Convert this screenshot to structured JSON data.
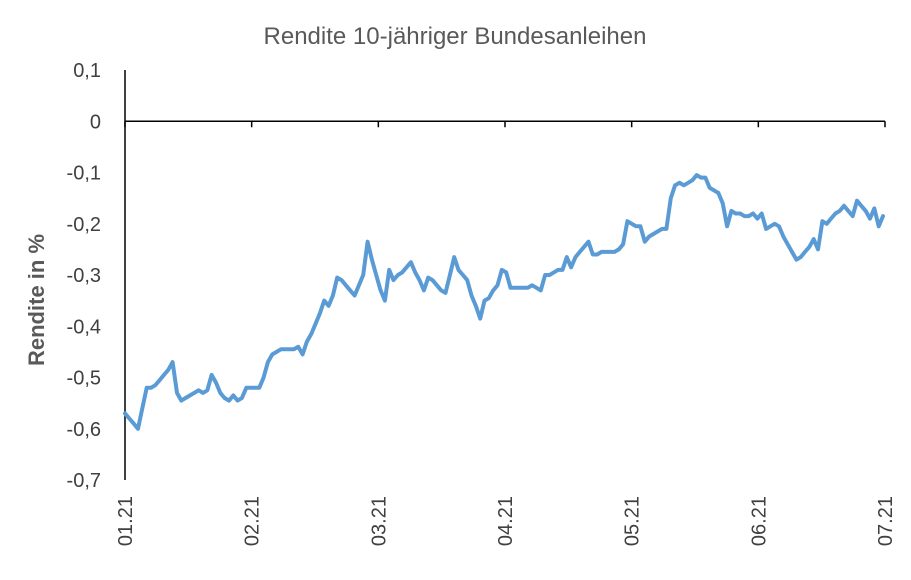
{
  "chart_data": {
    "type": "line",
    "title": "Rendite 10-jähriger Bundesanleihen",
    "xlabel": "",
    "ylabel": "Rendite in %",
    "ylim": [
      -0.7,
      0.1
    ],
    "yticks": [
      "0,1",
      "0",
      "-0,1",
      "-0,2",
      "-0,3",
      "-0,4",
      "-0,5",
      "-0,6",
      "-0,7"
    ],
    "ytick_values": [
      0.1,
      0,
      -0.1,
      -0.2,
      -0.3,
      -0.4,
      -0.5,
      -0.6,
      -0.7
    ],
    "xticks": [
      "01.21",
      "02.21",
      "03.21",
      "04.21",
      "05.21",
      "06.21",
      "07.21"
    ],
    "grid": false,
    "legend": "none",
    "colors": {
      "line": "#5b9bd5",
      "axis": "#000000",
      "text": "#595959"
    },
    "series": [
      {
        "values": [
          -0.57,
          -0.58,
          -0.59,
          -0.6,
          -0.56,
          -0.52,
          -0.52,
          -0.515,
          -0.505,
          -0.495,
          -0.485,
          -0.47,
          -0.53,
          -0.545,
          -0.54,
          -0.535,
          -0.53,
          -0.525,
          -0.53,
          -0.525,
          -0.495,
          -0.51,
          -0.53,
          -0.54,
          -0.545,
          -0.535,
          -0.545,
          -0.54,
          -0.52,
          -0.52,
          -0.52,
          -0.52,
          -0.5,
          -0.47,
          -0.455,
          -0.45,
          -0.445,
          -0.445,
          -0.445,
          -0.445,
          -0.44,
          -0.455,
          -0.43,
          -0.415,
          -0.395,
          -0.375,
          -0.35,
          -0.36,
          -0.34,
          -0.305,
          -0.31,
          -0.32,
          -0.33,
          -0.34,
          -0.32,
          -0.3,
          -0.235,
          -0.27,
          -0.3,
          -0.33,
          -0.35,
          -0.29,
          -0.31,
          -0.3,
          -0.295,
          -0.285,
          -0.275,
          -0.295,
          -0.31,
          -0.33,
          -0.305,
          -0.31,
          -0.32,
          -0.33,
          -0.335,
          -0.3,
          -0.265,
          -0.29,
          -0.3,
          -0.31,
          -0.34,
          -0.36,
          -0.385,
          -0.35,
          -0.345,
          -0.33,
          -0.32,
          -0.29,
          -0.295,
          -0.325,
          -0.325,
          -0.325,
          -0.325,
          -0.325,
          -0.32,
          -0.325,
          -0.33,
          -0.3,
          -0.3,
          -0.295,
          -0.29,
          -0.29,
          -0.265,
          -0.285,
          -0.265,
          -0.255,
          -0.245,
          -0.235,
          -0.26,
          -0.26,
          -0.255,
          -0.255,
          -0.255,
          -0.255,
          -0.25,
          -0.24,
          -0.195,
          -0.2,
          -0.205,
          -0.205,
          -0.235,
          -0.225,
          -0.22,
          -0.215,
          -0.21,
          -0.21,
          -0.15,
          -0.125,
          -0.12,
          -0.125,
          -0.12,
          -0.115,
          -0.105,
          -0.11,
          -0.11,
          -0.13,
          -0.135,
          -0.14,
          -0.16,
          -0.205,
          -0.175,
          -0.18,
          -0.18,
          -0.185,
          -0.185,
          -0.18,
          -0.19,
          -0.18,
          -0.21,
          -0.205,
          -0.2,
          -0.205,
          -0.225,
          -0.24,
          -0.255,
          -0.27,
          -0.265,
          -0.255,
          -0.245,
          -0.23,
          -0.25,
          -0.195,
          -0.2,
          -0.19,
          -0.18,
          -0.175,
          -0.165,
          -0.175,
          -0.185,
          -0.155,
          -0.165,
          -0.175,
          -0.19,
          -0.17,
          -0.205,
          -0.185
        ]
      }
    ]
  }
}
